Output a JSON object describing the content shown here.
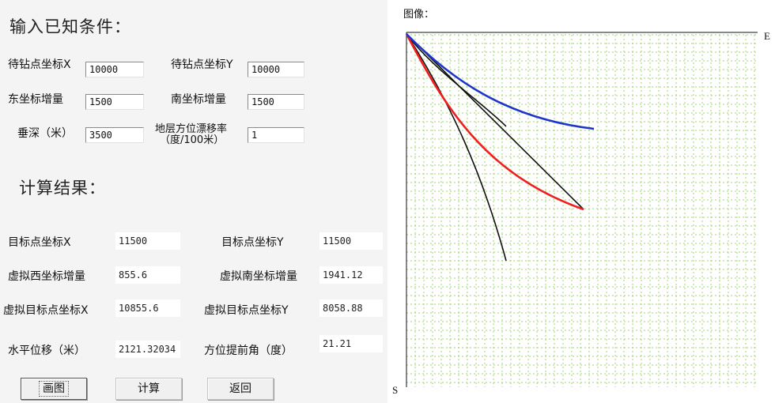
{
  "input_section": {
    "title": "输入已知条件：",
    "fields": [
      {
        "label": "待钻点坐标X",
        "value": "10000"
      },
      {
        "label": "待钻点坐标Y",
        "value": "10000"
      },
      {
        "label": "东坐标增量",
        "value": "1500"
      },
      {
        "label": "南坐标增量",
        "value": "1500"
      },
      {
        "label": "垂深（米）",
        "value": "3500"
      },
      {
        "label_line1": "地层方位漂移率",
        "label_line2": "（度/100米）",
        "value": "1"
      }
    ]
  },
  "result_section": {
    "title": "计算结果：",
    "rows": [
      {
        "label": "目标点坐标X",
        "value": "11500"
      },
      {
        "label": "目标点坐标Y",
        "value": "11500"
      },
      {
        "label": "虚拟西坐标增量",
        "value": "855.6"
      },
      {
        "label": "虚拟南坐标增量",
        "value": "1941.12"
      },
      {
        "label": "虚拟目标点坐标X",
        "value": "10855.6"
      },
      {
        "label": "虚拟目标点坐标Y",
        "value": "8058.88"
      },
      {
        "label": "水平位移（米）",
        "value": "2121.32034"
      },
      {
        "label": "方位提前角（度）",
        "value": "21.21"
      }
    ]
  },
  "buttons": {
    "draw": "画图",
    "calculate": "计算",
    "back": "返回"
  },
  "plot": {
    "title": "图像：",
    "axis_east_label": "E",
    "axis_south_label": "S",
    "grid_color": "#9fd36f",
    "curve_colors": {
      "blue": "#1d35c8",
      "red": "#ee1f1f",
      "black": "#111111"
    }
  }
}
